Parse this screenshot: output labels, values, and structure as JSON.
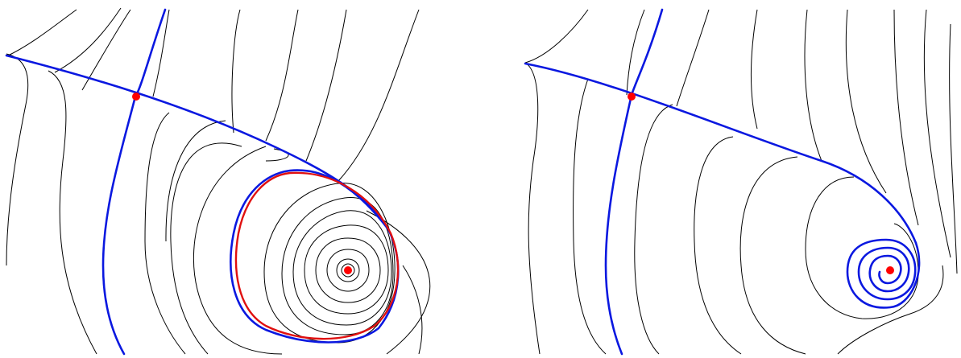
{
  "colors": {
    "background": "#ffffff",
    "flow_line": "#000000",
    "manifold": "#0a18e0",
    "critical_point": "#ff0000",
    "limit_cycle": "#e01010"
  },
  "panels": [
    {
      "id": "left",
      "features": [
        "saddle-point",
        "stable-manifold",
        "unstable-manifold",
        "limit-cycle",
        "focus-point"
      ]
    },
    {
      "id": "right",
      "features": [
        "saddle-point",
        "stable-manifold",
        "unstable-manifold",
        "spiral-focus-point"
      ]
    }
  ]
}
